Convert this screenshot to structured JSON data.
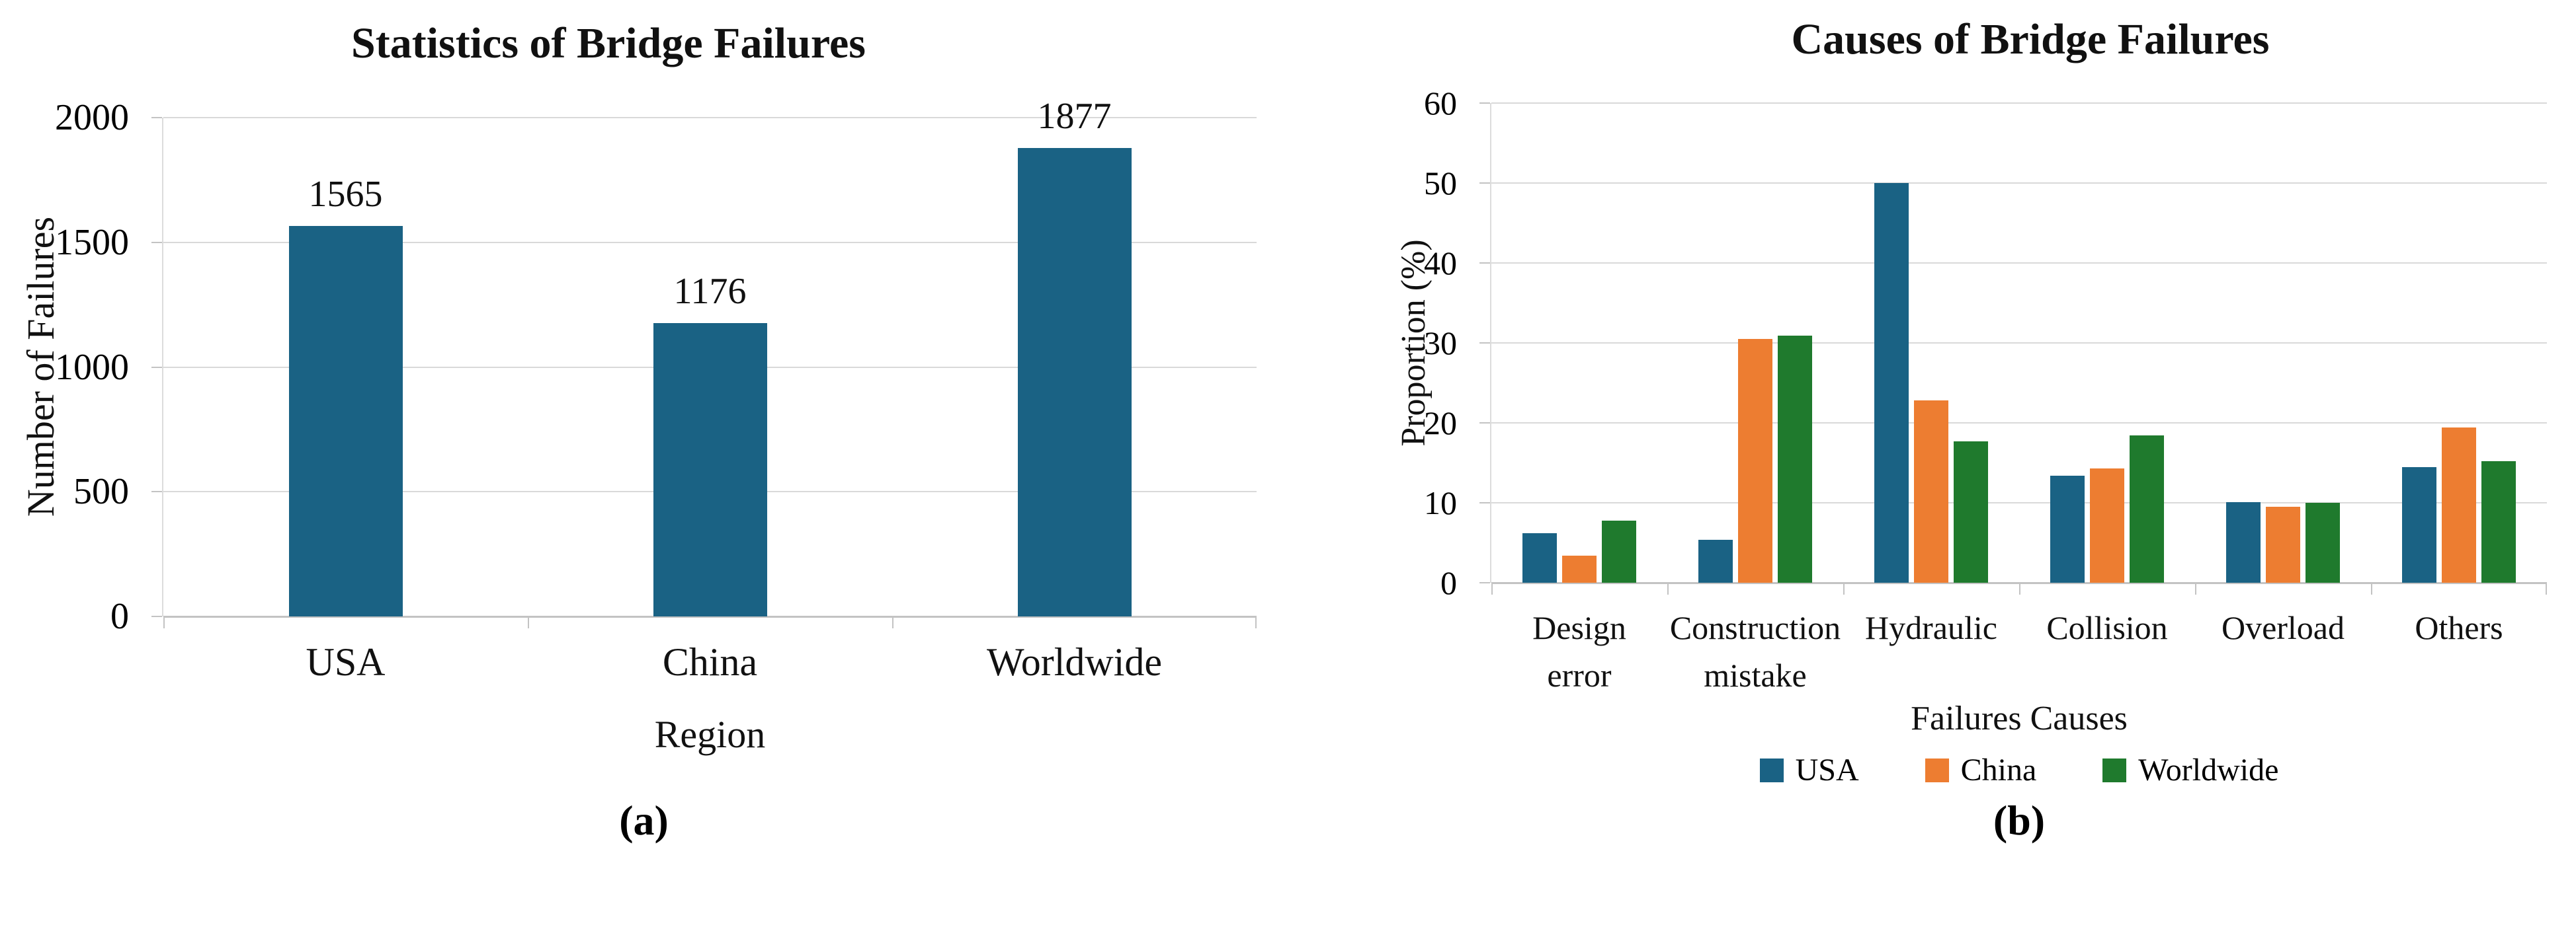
{
  "captions": {
    "a": "(a)",
    "b": "(b)"
  },
  "colors": {
    "bar_blue": "#1A6284",
    "bar_orange": "#ED7D31",
    "bar_green": "#1F7A2D",
    "gridline": "#D9D9D9",
    "axis_line": "#C3C3C3",
    "text": "#111111"
  },
  "chart_data": [
    {
      "type": "bar",
      "title": "Statistics of Bridge Failures",
      "xlabel": "Region",
      "ylabel": "Number of Failures",
      "categories": [
        "USA",
        "China",
        "Worldwide"
      ],
      "values": [
        1565,
        1176,
        1877
      ],
      "bar_labels": [
        "1565",
        "1176",
        "1877"
      ],
      "bar_color": "#1A6284",
      "ylim": [
        0,
        2000
      ],
      "yticks": [
        0,
        500,
        1000,
        1500,
        2000
      ],
      "grid": true,
      "legend_position": "none"
    },
    {
      "type": "bar",
      "title": "Causes of Bridge Failures",
      "xlabel": "Failures Causes",
      "ylabel": "Proportion (%)",
      "categories": [
        "Design\nerror",
        "Construction\nmistake",
        "Hydraulic",
        "Collision",
        "Overload",
        "Others"
      ],
      "series": [
        {
          "name": "USA",
          "color": "#1A6284",
          "values": [
            6.2,
            5.4,
            50.0,
            13.4,
            10.1,
            14.5
          ]
        },
        {
          "name": "China",
          "color": "#ED7D31",
          "values": [
            3.4,
            30.5,
            22.8,
            14.3,
            9.5,
            19.4
          ]
        },
        {
          "name": "Worldwide",
          "color": "#1F7A2D",
          "values": [
            7.8,
            30.9,
            17.7,
            18.4,
            10.0,
            15.2
          ]
        }
      ],
      "ylim": [
        0,
        60
      ],
      "yticks": [
        0,
        10,
        20,
        30,
        40,
        50,
        60
      ],
      "grid": true,
      "legend_position": "bottom"
    }
  ]
}
